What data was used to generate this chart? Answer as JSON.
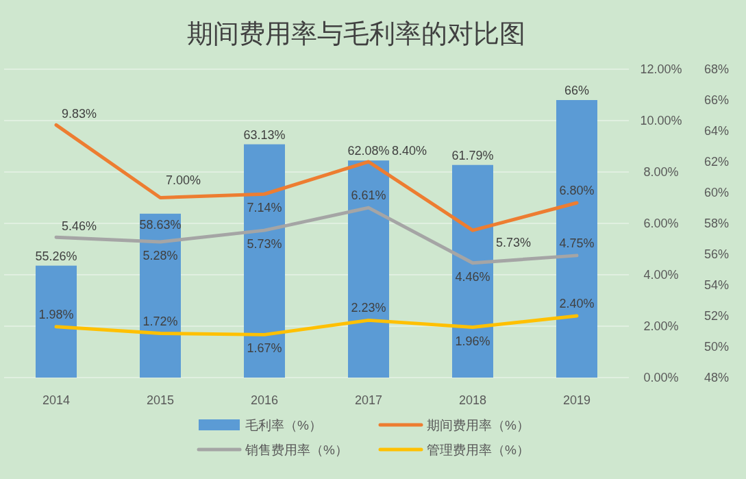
{
  "chart_data": {
    "type": "bar",
    "title": "期间费用率与毛利率的对比图",
    "categories": [
      "2014",
      "2015",
      "2016",
      "2017",
      "2018",
      "2019"
    ],
    "series": [
      {
        "name": "毛利率（%）",
        "axis": "y2",
        "color": "#5b9bd5",
        "values": [
          55.26,
          58.63,
          63.13,
          62.08,
          61.79,
          66
        ],
        "value_labels": [
          "55.26%",
          "58.63%",
          "63.13%",
          "62.08%",
          "61.79%",
          "66%"
        ]
      },
      {
        "name": "期间费用率（%）",
        "type": "line",
        "color": "#ed7d31",
        "values": [
          9.83,
          7.0,
          7.14,
          8.4,
          5.73,
          6.8
        ],
        "value_labels": [
          "9.83%",
          "7.00%",
          "7.14%",
          "8.40%",
          "5.73%",
          "6.80%"
        ]
      },
      {
        "name": "销售费用率（%）",
        "type": "line",
        "color": "#a5a5a5",
        "values": [
          5.46,
          5.28,
          5.73,
          6.61,
          4.46,
          4.75
        ],
        "value_labels": [
          "5.46%",
          "5.28%",
          "5.73%",
          "6.61%",
          "4.46%",
          "4.75%"
        ]
      },
      {
        "name": "管理费用率（%）",
        "type": "line",
        "color": "#ffc000",
        "values": [
          1.98,
          1.72,
          1.67,
          2.23,
          1.96,
          2.4
        ],
        "value_labels": [
          "1.98%",
          "1.72%",
          "1.67%",
          "2.23%",
          "1.96%",
          "2.40%"
        ]
      }
    ],
    "ylim": [
      0,
      12
    ],
    "yticks": [
      {
        "value": 0,
        "label": "0.00%"
      },
      {
        "value": 2,
        "label": "2.00%"
      },
      {
        "value": 4,
        "label": "4.00%"
      },
      {
        "value": 6,
        "label": "6.00%"
      },
      {
        "value": 8,
        "label": "8.00%"
      },
      {
        "value": 10,
        "label": "10.00%"
      },
      {
        "value": 12,
        "label": "12.00%"
      }
    ],
    "y2lim": [
      48,
      68
    ],
    "y2ticks": [
      {
        "value": 48,
        "label": "48%"
      },
      {
        "value": 50,
        "label": "50%"
      },
      {
        "value": 52,
        "label": "52%"
      },
      {
        "value": 54,
        "label": "54%"
      },
      {
        "value": 56,
        "label": "56%"
      },
      {
        "value": 58,
        "label": "58%"
      },
      {
        "value": 60,
        "label": "60%"
      },
      {
        "value": 62,
        "label": "62%"
      },
      {
        "value": 64,
        "label": "64%"
      },
      {
        "value": 66,
        "label": "66%"
      },
      {
        "value": 68,
        "label": "68%"
      }
    ],
    "grid": "y",
    "legend": "bottom"
  }
}
